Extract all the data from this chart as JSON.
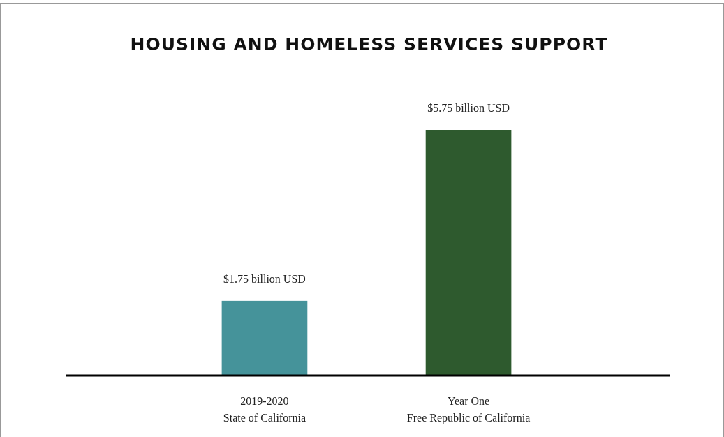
{
  "chart_data": {
    "type": "bar",
    "title": "HOUSING AND HOMELESS SERVICES SUPPORT",
    "categories": [
      "2019-2020\nState of California",
      "Year One\nFree Republic of California"
    ],
    "values": [
      1.75,
      5.75
    ],
    "colors": [
      "#45939a",
      "#2e5a2e"
    ],
    "value_labels": [
      "$1.75 billion USD",
      "$5.75 billion USD"
    ]
  }
}
